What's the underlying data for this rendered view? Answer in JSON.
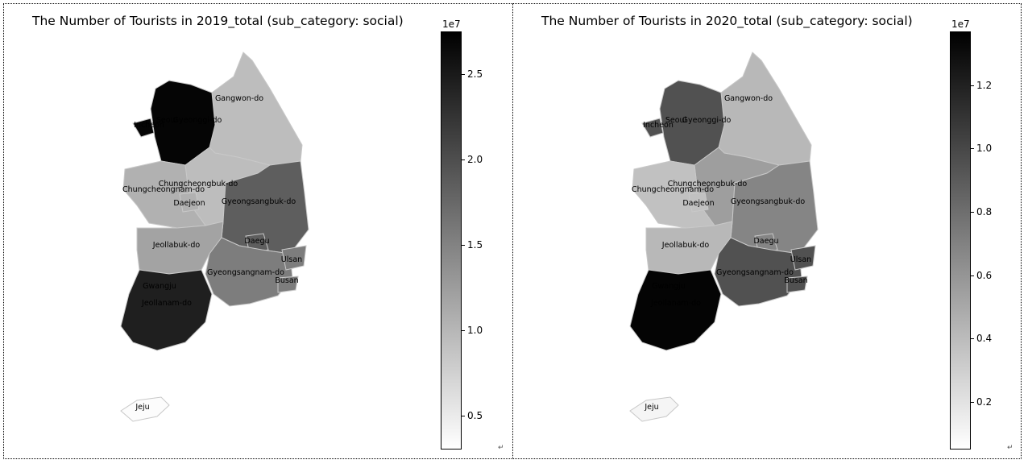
{
  "colors": {
    "min": "#ffffff",
    "max": "#000000",
    "border": "#c8c8c8"
  },
  "paragraph_mark": "↵",
  "maps": [
    {
      "title": "The Number of Tourists in 2019_total (sub_category: social)",
      "colorbar": {
        "exponent_label": "1e7",
        "vmin": 0.3,
        "vmax": 2.75,
        "ticks": [
          "0.5",
          "1.0",
          "1.5",
          "2.0",
          "2.5"
        ],
        "tick_values": [
          0.5,
          1.0,
          1.5,
          2.0,
          2.5
        ]
      },
      "regions": [
        {
          "name": "Gangwon-do",
          "value": 0.93
        },
        {
          "name": "Seoul",
          "value": 2.7
        },
        {
          "name": "Gyeonggi-do",
          "value": 2.7
        },
        {
          "name": "Incheon",
          "value": 2.7
        },
        {
          "name": "Chungcheongbuk-do",
          "value": 0.93
        },
        {
          "name": "Chungcheongnam-do",
          "value": 1.05
        },
        {
          "name": "Daejeon",
          "value": 1.05
        },
        {
          "name": "Gyeongsangbuk-do",
          "value": 1.85
        },
        {
          "name": "Daegu",
          "value": 1.85
        },
        {
          "name": "Jeollabuk-do",
          "value": 1.18
        },
        {
          "name": "Gyeongsangnam-do",
          "value": 1.55
        },
        {
          "name": "Ulsan",
          "value": 1.55
        },
        {
          "name": "Busan",
          "value": 1.55
        },
        {
          "name": "Gwangju",
          "value": 2.45
        },
        {
          "name": "Jeollanam-do",
          "value": 2.45
        },
        {
          "name": "Jeju",
          "value": 0.33
        }
      ]
    },
    {
      "title": "The Number of Tourists in 2020_total (sub_category: social)",
      "colorbar": {
        "exponent_label": "1e7",
        "vmin": 0.05,
        "vmax": 1.37,
        "ticks": [
          "0.2",
          "0.4",
          "0.6",
          "0.8",
          "1.0",
          "1.2"
        ],
        "tick_values": [
          0.2,
          0.4,
          0.6,
          0.8,
          1.0,
          1.2
        ]
      },
      "regions": [
        {
          "name": "Gangwon-do",
          "value": 0.42
        },
        {
          "name": "Seoul",
          "value": 0.95
        },
        {
          "name": "Gyeonggi-do",
          "value": 0.95
        },
        {
          "name": "Incheon",
          "value": 0.95
        },
        {
          "name": "Chungcheongbuk-do",
          "value": 0.55
        },
        {
          "name": "Chungcheongnam-do",
          "value": 0.37
        },
        {
          "name": "Daejeon",
          "value": 0.37
        },
        {
          "name": "Gyeongsangbuk-do",
          "value": 0.68
        },
        {
          "name": "Daegu",
          "value": 0.68
        },
        {
          "name": "Jeollabuk-do",
          "value": 0.42
        },
        {
          "name": "Gyeongsangnam-do",
          "value": 0.95
        },
        {
          "name": "Ulsan",
          "value": 0.95
        },
        {
          "name": "Busan",
          "value": 0.95
        },
        {
          "name": "Gwangju",
          "value": 1.35
        },
        {
          "name": "Jeollanam-do",
          "value": 1.35
        },
        {
          "name": "Jeju",
          "value": 0.1
        }
      ]
    }
  ]
}
